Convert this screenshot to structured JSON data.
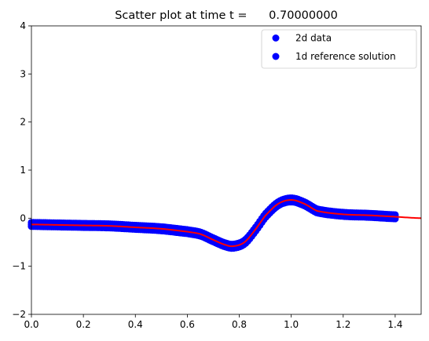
{
  "chart_data": {
    "type": "scatter",
    "title": "Scatter plot at time t =      0.70000000",
    "xlabel": "",
    "ylabel": "",
    "xlim": [
      0.0,
      1.5
    ],
    "ylim": [
      -2,
      4
    ],
    "x_ticks": [
      "0.0",
      "0.2",
      "0.4",
      "0.6",
      "0.8",
      "1.0",
      "1.2",
      "1.4"
    ],
    "y_ticks": [
      "−2",
      "−1",
      "0",
      "1",
      "2",
      "3",
      "4"
    ],
    "grid": false,
    "legend_position": "top-right",
    "series": [
      {
        "name": "2d data",
        "kind": "scatter",
        "color": "#0000ff",
        "x": [
          0.0,
          0.1,
          0.2,
          0.3,
          0.4,
          0.5,
          0.6,
          0.65,
          0.7,
          0.75,
          0.78,
          0.82,
          0.86,
          0.9,
          0.95,
          1.0,
          1.05,
          1.1,
          1.2,
          1.3,
          1.4
        ],
        "y": [
          -0.13,
          -0.14,
          -0.15,
          -0.16,
          -0.19,
          -0.22,
          -0.28,
          -0.33,
          -0.45,
          -0.56,
          -0.58,
          -0.5,
          -0.25,
          0.05,
          0.3,
          0.38,
          0.3,
          0.15,
          0.08,
          0.06,
          0.03
        ]
      },
      {
        "name": "1d reference solution",
        "kind": "line",
        "color": "#ff0000",
        "x": [
          0.0,
          0.1,
          0.2,
          0.3,
          0.4,
          0.5,
          0.6,
          0.65,
          0.7,
          0.75,
          0.78,
          0.82,
          0.86,
          0.9,
          0.95,
          1.0,
          1.05,
          1.1,
          1.2,
          1.3,
          1.4,
          1.5
        ],
        "y": [
          -0.13,
          -0.14,
          -0.15,
          -0.16,
          -0.19,
          -0.22,
          -0.28,
          -0.33,
          -0.45,
          -0.56,
          -0.58,
          -0.5,
          -0.25,
          0.05,
          0.3,
          0.38,
          0.3,
          0.15,
          0.08,
          0.06,
          0.03,
          0.0
        ]
      }
    ],
    "legend_marker_color": "#0000ff"
  }
}
